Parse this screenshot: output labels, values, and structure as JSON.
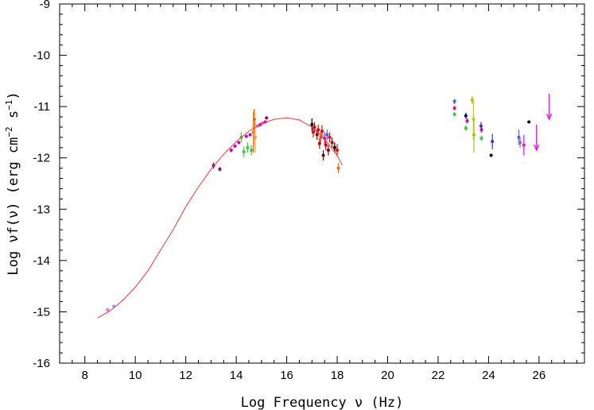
{
  "chart_data": {
    "type": "scatter",
    "title": "",
    "xlabel": "Log Frequency ν (Hz)",
    "ylabel_parts": {
      "pre": "Log νf(ν) (erg cm",
      "exp1": "−2",
      "mid": " s",
      "exp2": "−1",
      "post": ")"
    },
    "xlim": [
      7,
      27.8
    ],
    "ylim": [
      -16,
      -9
    ],
    "x_ticks": [
      8,
      10,
      12,
      14,
      16,
      18,
      20,
      22,
      24,
      26
    ],
    "x_tick_labels": [
      "8",
      "10",
      "12",
      "14",
      "16",
      "18",
      "20",
      "22",
      "24",
      "26"
    ],
    "y_ticks": [
      -16,
      -15,
      -14,
      -13,
      -12,
      -11,
      -10,
      -9
    ],
    "y_tick_labels": [
      "-16",
      "-15",
      "-14",
      "-13",
      "-12",
      "-11",
      "-10",
      "-9"
    ],
    "grid": false,
    "model_curve": {
      "color": "#ff3333",
      "x": [
        8.5,
        9.0,
        9.5,
        10.0,
        10.5,
        11.0,
        11.5,
        12.0,
        12.5,
        13.0,
        13.5,
        14.0,
        14.5,
        15.0,
        15.5,
        16.0,
        16.5,
        17.0,
        17.5,
        18.0,
        18.2
      ],
      "y": [
        -15.12,
        -14.98,
        -14.78,
        -14.52,
        -14.2,
        -13.8,
        -13.4,
        -12.95,
        -12.57,
        -12.22,
        -11.93,
        -11.68,
        -11.48,
        -11.33,
        -11.25,
        -11.22,
        -11.26,
        -11.4,
        -11.63,
        -11.95,
        -12.14
      ]
    },
    "points": [
      {
        "x": 8.9,
        "y": -14.96,
        "yerr": 0.02,
        "color": "#ff66cc"
      },
      {
        "x": 9.15,
        "y": -14.89,
        "yerr": 0.02,
        "color": "#66aaff"
      },
      {
        "x": 13.1,
        "y": -12.15,
        "yerr": 0.06,
        "color": "#990066"
      },
      {
        "x": 13.35,
        "y": -12.22,
        "yerr": 0.04,
        "color": "#990066"
      },
      {
        "x": 13.8,
        "y": -11.85,
        "yerr": 0.04,
        "color": "#cc00cc"
      },
      {
        "x": 13.95,
        "y": -11.77,
        "yerr": 0.03,
        "color": "#cc00cc"
      },
      {
        "x": 14.1,
        "y": -11.7,
        "yerr": 0.03,
        "color": "#cc00cc"
      },
      {
        "x": 14.2,
        "y": -11.6,
        "yerr": 0.1,
        "color": "#33cc33"
      },
      {
        "x": 14.3,
        "y": -11.88,
        "yerr": 0.1,
        "color": "#33cc33"
      },
      {
        "x": 14.45,
        "y": -11.8,
        "yerr": 0.1,
        "color": "#33cc33"
      },
      {
        "x": 14.6,
        "y": -11.85,
        "yerr": 0.1,
        "color": "#33cc33"
      },
      {
        "x": 14.4,
        "y": -11.58,
        "yerr": 0.03,
        "color": "#cc00cc"
      },
      {
        "x": 14.55,
        "y": -11.55,
        "yerr": 0.03,
        "color": "#cc00cc"
      },
      {
        "x": 14.68,
        "y": -11.5,
        "yerr": 0.4,
        "color": "#ff6600"
      },
      {
        "x": 14.7,
        "y": -11.4,
        "yerr": 0.35,
        "color": "#ff9900"
      },
      {
        "x": 14.72,
        "y": -11.25,
        "yerr": 0.2,
        "color": "#ff6600"
      },
      {
        "x": 14.75,
        "y": -11.6,
        "yerr": 0.3,
        "color": "#ff9933"
      },
      {
        "x": 14.85,
        "y": -11.38,
        "yerr": 0.03,
        "color": "#cc66cc"
      },
      {
        "x": 14.95,
        "y": -11.35,
        "yerr": 0.03,
        "color": "#cc00cc"
      },
      {
        "x": 15.05,
        "y": -11.32,
        "yerr": 0.03,
        "color": "#cc66cc"
      },
      {
        "x": 15.15,
        "y": -11.3,
        "yerr": 0.03,
        "color": "#cc00cc"
      },
      {
        "x": 15.2,
        "y": -11.22,
        "yerr": 0.03,
        "color": "#990066"
      },
      {
        "x": 17.0,
        "y": -11.35,
        "yerr": 0.12,
        "color": "#000000"
      },
      {
        "x": 17.05,
        "y": -11.5,
        "yerr": 0.1,
        "color": "#ff0000"
      },
      {
        "x": 17.1,
        "y": -11.4,
        "yerr": 0.1,
        "color": "#cc0000"
      },
      {
        "x": 17.2,
        "y": -11.55,
        "yerr": 0.1,
        "color": "#990000"
      },
      {
        "x": 17.25,
        "y": -11.45,
        "yerr": 0.1,
        "color": "#ff0000"
      },
      {
        "x": 17.3,
        "y": -11.72,
        "yerr": 0.1,
        "color": "#cc0000"
      },
      {
        "x": 17.35,
        "y": -11.6,
        "yerr": 0.1,
        "color": "#cc6600"
      },
      {
        "x": 17.4,
        "y": -11.48,
        "yerr": 0.12,
        "color": "#ff0000"
      },
      {
        "x": 17.45,
        "y": -11.95,
        "yerr": 0.1,
        "color": "#660000"
      },
      {
        "x": 17.5,
        "y": -11.62,
        "yerr": 0.12,
        "color": "#cc00cc"
      },
      {
        "x": 17.55,
        "y": -11.75,
        "yerr": 0.1,
        "color": "#cc0000"
      },
      {
        "x": 17.6,
        "y": -11.55,
        "yerr": 0.1,
        "color": "#3366ff"
      },
      {
        "x": 17.65,
        "y": -11.85,
        "yerr": 0.1,
        "color": "#990000"
      },
      {
        "x": 17.7,
        "y": -11.6,
        "yerr": 0.1,
        "color": "#ff0000"
      },
      {
        "x": 17.8,
        "y": -11.7,
        "yerr": 0.1,
        "color": "#cc0000"
      },
      {
        "x": 17.9,
        "y": -11.8,
        "yerr": 0.1,
        "color": "#000000"
      },
      {
        "x": 18.0,
        "y": -11.85,
        "yerr": 0.12,
        "color": "#ff0000"
      },
      {
        "x": 18.05,
        "y": -12.2,
        "yerr": 0.1,
        "color": "#ff6600"
      },
      {
        "x": 22.65,
        "y": -10.9,
        "yerr": 0.05,
        "color": "#3366ff"
      },
      {
        "x": 22.65,
        "y": -11.03,
        "yerr": 0.04,
        "color": "#ff0066"
      },
      {
        "x": 22.65,
        "y": -11.15,
        "yerr": 0.04,
        "color": "#33cc33"
      },
      {
        "x": 23.1,
        "y": -11.18,
        "yerr": 0.06,
        "color": "#000099"
      },
      {
        "x": 23.15,
        "y": -11.28,
        "yerr": 0.05,
        "color": "#cc00cc"
      },
      {
        "x": 23.1,
        "y": -11.42,
        "yerr": 0.05,
        "color": "#33cc33"
      },
      {
        "x": 23.35,
        "y": -10.87,
        "yerr": 0.08,
        "color": "#99cc00"
      },
      {
        "x": 23.4,
        "y": -11.25,
        "yerr": 0.4,
        "color": "#cccc00"
      },
      {
        "x": 23.42,
        "y": -11.55,
        "yerr": 0.35,
        "color": "#99cc00"
      },
      {
        "x": 23.7,
        "y": -11.38,
        "yerr": 0.08,
        "color": "#3333cc"
      },
      {
        "x": 23.72,
        "y": -11.45,
        "yerr": 0.06,
        "color": "#cc00cc"
      },
      {
        "x": 23.72,
        "y": -11.62,
        "yerr": 0.05,
        "color": "#33cc33"
      },
      {
        "x": 24.15,
        "y": -11.68,
        "yerr": 0.15,
        "color": "#3333cc"
      },
      {
        "x": 24.1,
        "y": -11.95,
        "yerr": 0.02,
        "color": "#000000"
      },
      {
        "x": 25.2,
        "y": -11.6,
        "yerr": 0.15,
        "color": "#3366ff"
      },
      {
        "x": 25.25,
        "y": -11.7,
        "yerr": 0.1,
        "color": "#9966cc"
      },
      {
        "x": 25.6,
        "y": -11.3,
        "yerr": 0.02,
        "color": "#000000"
      },
      {
        "x": 25.4,
        "y": -11.75,
        "yerr": 0.2,
        "color": "#ff00ff"
      }
    ],
    "upper_limits": [
      {
        "x": 25.9,
        "y": -11.35,
        "length": 0.5,
        "color": "#ff00ff"
      },
      {
        "x": 26.4,
        "y": -10.75,
        "length": 0.5,
        "color": "#ff00ff"
      }
    ]
  }
}
